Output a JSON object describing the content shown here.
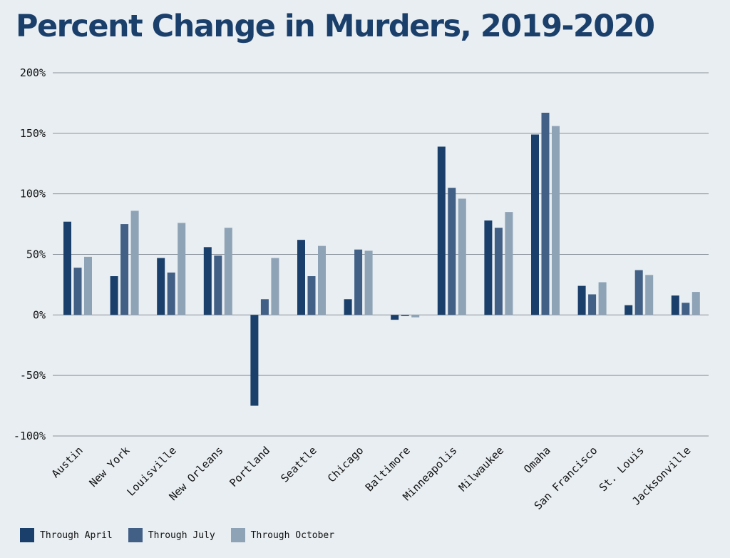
{
  "chart_data": {
    "type": "bar",
    "title": "Percent Change in Murders, 2019-2020",
    "xlabel": "",
    "ylabel": "",
    "ylim": [
      -100,
      200
    ],
    "yticks": [
      200,
      150,
      100,
      50,
      0,
      -50,
      -100
    ],
    "ytick_labels": [
      "200%",
      "150%",
      "100%",
      "50%",
      "0%",
      "-50%",
      "-100%"
    ],
    "grid": true,
    "legend_position": "bottom-left",
    "categories": [
      "Austin",
      "New York",
      "Louisville",
      "New Orleans",
      "Portland",
      "Seattle",
      "Chicago",
      "Baltimore",
      "Minneapolis",
      "Milwaukee",
      "Omaha",
      "San Francisco",
      "St. Louis",
      "Jacksonville"
    ],
    "series": [
      {
        "name": "Through April",
        "color": "#1b3f6b",
        "values": [
          77,
          32,
          47,
          56,
          -75,
          62,
          13,
          -4,
          139,
          78,
          149,
          24,
          8,
          16
        ]
      },
      {
        "name": "Through July",
        "color": "#425f85",
        "values": [
          39,
          75,
          35,
          49,
          13,
          32,
          54,
          -1,
          105,
          72,
          167,
          17,
          37,
          10
        ]
      },
      {
        "name": "Through October",
        "color": "#8fa3b6",
        "values": [
          48,
          86,
          76,
          72,
          47,
          57,
          53,
          -2,
          96,
          85,
          156,
          27,
          33,
          19
        ]
      }
    ]
  }
}
